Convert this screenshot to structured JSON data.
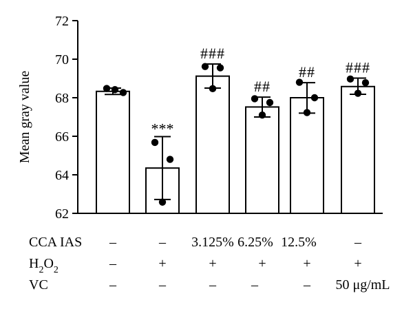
{
  "chart_data": {
    "type": "bar",
    "ylabel": "Mean gray value",
    "ylim": [
      62,
      72
    ],
    "yticks": [
      62,
      64,
      66,
      68,
      70,
      72
    ],
    "grid": false,
    "bar_fill": "#ffffff",
    "bar_stroke": "#000000",
    "point_color": "#000000",
    "groups": [
      {
        "mean": 68.33,
        "error": [
          68.17,
          68.5
        ],
        "points": [
          68.48,
          68.42,
          68.27
        ],
        "annotation": ""
      },
      {
        "mean": 64.35,
        "error": [
          62.72,
          65.98
        ],
        "points": [
          65.68,
          64.8,
          62.58
        ],
        "annotation": "***"
      },
      {
        "mean": 69.12,
        "error": [
          68.5,
          69.75
        ],
        "points": [
          69.55,
          69.62,
          68.47
        ],
        "annotation": "###"
      },
      {
        "mean": 67.52,
        "error": [
          67.0,
          68.03
        ],
        "points": [
          67.95,
          67.75,
          67.1
        ],
        "annotation": "##"
      },
      {
        "mean": 68.0,
        "error": [
          67.2,
          68.78
        ],
        "points": [
          68.8,
          68.0,
          67.23
        ],
        "annotation": "##"
      },
      {
        "mean": 68.58,
        "error": [
          68.18,
          69.02
        ],
        "points": [
          68.97,
          68.78,
          68.23
        ],
        "annotation": "###"
      }
    ],
    "treatment_table": [
      {
        "label": "CCA IAS",
        "values": [
          "–",
          "–",
          "3.125%",
          "6.25%",
          "12.5%",
          "–"
        ]
      },
      {
        "label": "H2O2",
        "label_main": "H",
        "label_sub1": "2",
        "label_mid": "O",
        "label_sub2": "2",
        "values": [
          "–",
          "+",
          "+",
          "+",
          "+",
          "+"
        ]
      },
      {
        "label": "VC",
        "values": [
          "–",
          "–",
          "–",
          "–",
          "–",
          "50 μg/mL"
        ]
      }
    ]
  }
}
